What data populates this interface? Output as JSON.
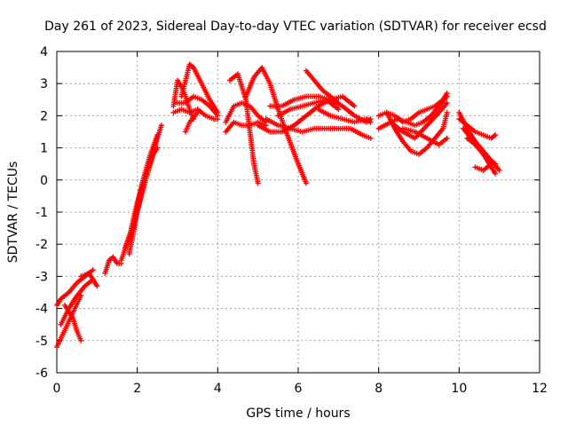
{
  "chart_data": {
    "type": "scatter",
    "title": "Day 261 of 2023, Sidereal Day-to-day VTEC variation (SDTVAR) for receiver ecsd",
    "xlabel": "GPS time / hours",
    "ylabel": "SDTVAR / TECUs",
    "xlim": [
      0,
      12
    ],
    "ylim": [
      -6,
      4
    ],
    "xticks": [
      "0",
      "2",
      "4",
      "6",
      "8",
      "10",
      "12"
    ],
    "yticks": [
      "-6",
      "-5",
      "-4",
      "-3",
      "-2",
      "-1",
      "0",
      "1",
      "2",
      "3",
      "4"
    ],
    "grid": true,
    "marker": "+",
    "color": "#ff0000",
    "arcs": [
      {
        "x": [
          0.0,
          0.1,
          0.3,
          0.5,
          0.7,
          0.9
        ],
        "y": [
          -3.9,
          -3.7,
          -3.5,
          -3.2,
          -3.0,
          -2.8
        ]
      },
      {
        "x": [
          0.0,
          0.15,
          0.3,
          0.45,
          0.6
        ],
        "y": [
          -5.2,
          -4.8,
          -4.4,
          -4.0,
          -3.6
        ]
      },
      {
        "x": [
          0.1,
          0.3,
          0.5,
          0.7,
          0.9
        ],
        "y": [
          -4.5,
          -4.0,
          -3.6,
          -3.3,
          -3.1
        ]
      },
      {
        "x": [
          0.2,
          0.4,
          0.5,
          0.6
        ],
        "y": [
          -3.9,
          -4.3,
          -4.7,
          -5.0
        ]
      },
      {
        "x": [
          0.6,
          0.8,
          0.9,
          1.0
        ],
        "y": [
          -3.0,
          -2.9,
          -3.1,
          -3.3
        ]
      },
      {
        "x": [
          1.2,
          1.3,
          1.4,
          1.5,
          1.6
        ],
        "y": [
          -2.9,
          -2.5,
          -2.4,
          -2.6,
          -2.6
        ]
      },
      {
        "x": [
          1.6,
          1.8,
          2.0,
          2.2,
          2.4,
          2.6
        ],
        "y": [
          -2.5,
          -1.8,
          -0.7,
          0.1,
          0.9,
          1.7
        ]
      },
      {
        "x": [
          1.7,
          1.9,
          2.1,
          2.3,
          2.5
        ],
        "y": [
          -2.1,
          -1.4,
          -0.5,
          0.4,
          1.3
        ]
      },
      {
        "x": [
          1.8,
          2.0,
          2.2,
          2.4,
          2.5
        ],
        "y": [
          -2.3,
          -1.0,
          0.1,
          0.8,
          1.0
        ]
      },
      {
        "x": [
          1.9,
          2.1,
          2.3,
          2.5
        ],
        "y": [
          -1.5,
          -0.2,
          0.7,
          1.4
        ]
      },
      {
        "x": [
          2.9,
          3.0,
          3.1,
          3.2,
          3.3,
          3.4
        ],
        "y": [
          2.3,
          3.1,
          2.9,
          2.6,
          2.2,
          1.9
        ]
      },
      {
        "x": [
          2.9,
          3.1,
          3.3,
          3.5,
          3.7,
          3.9,
          4.0
        ],
        "y": [
          2.1,
          2.2,
          2.1,
          2.2,
          2.0,
          1.9,
          1.9
        ]
      },
      {
        "x": [
          3.1,
          3.2,
          3.3,
          3.4,
          3.6,
          3.8,
          4.0
        ],
        "y": [
          2.6,
          3.1,
          3.6,
          3.5,
          3.0,
          2.5,
          2.1
        ]
      },
      {
        "x": [
          3.0,
          3.2,
          3.4,
          3.6,
          3.8,
          4.0
        ],
        "y": [
          2.4,
          2.4,
          2.6,
          2.5,
          2.3,
          2.0
        ]
      },
      {
        "x": [
          3.2,
          3.3,
          3.5
        ],
        "y": [
          1.5,
          1.8,
          2.1
        ]
      },
      {
        "x": [
          4.3,
          4.5,
          4.7,
          4.9,
          5.0
        ],
        "y": [
          3.1,
          3.3,
          2.5,
          0.5,
          -0.1
        ]
      },
      {
        "x": [
          4.2,
          4.4,
          4.6,
          4.8,
          5.0,
          5.2
        ],
        "y": [
          1.8,
          2.3,
          2.4,
          2.3,
          2.0,
          1.8
        ]
      },
      {
        "x": [
          4.2,
          4.4,
          4.6,
          4.8,
          5.0,
          5.2
        ],
        "y": [
          1.5,
          1.8,
          1.7,
          1.7,
          1.8,
          1.7
        ]
      },
      {
        "x": [
          4.7,
          4.9,
          5.1,
          5.3,
          5.5,
          5.7,
          6.0,
          6.2
        ],
        "y": [
          2.6,
          3.2,
          3.5,
          3.0,
          2.2,
          1.5,
          0.5,
          -0.1
        ]
      },
      {
        "x": [
          5.2,
          5.5,
          5.8,
          6.1,
          6.4,
          6.7,
          7.0,
          7.3,
          7.6,
          7.8
        ],
        "y": [
          1.9,
          1.7,
          1.6,
          1.5,
          1.6,
          1.6,
          1.6,
          1.6,
          1.4,
          1.3
        ]
      },
      {
        "x": [
          5.3,
          5.6,
          5.9,
          6.2,
          6.5,
          6.8,
          7.1,
          7.4,
          7.7,
          7.8
        ],
        "y": [
          2.3,
          2.3,
          2.5,
          2.6,
          2.6,
          2.5,
          2.3,
          2.0,
          1.8,
          1.9
        ]
      },
      {
        "x": [
          5.0,
          5.3,
          5.6,
          5.9,
          6.2,
          6.5,
          6.8,
          7.1,
          7.4
        ],
        "y": [
          1.7,
          1.5,
          1.5,
          1.7,
          2.0,
          2.3,
          2.5,
          2.6,
          2.3
        ]
      },
      {
        "x": [
          5.5,
          5.8,
          6.1,
          6.4,
          6.7,
          7.0
        ],
        "y": [
          2.0,
          2.2,
          2.3,
          2.4,
          2.5,
          2.2
        ]
      },
      {
        "x": [
          6.2,
          6.4,
          6.6,
          6.8,
          7.0
        ],
        "y": [
          3.4,
          3.1,
          2.8,
          2.6,
          2.4
        ]
      },
      {
        "x": [
          6.5,
          6.8,
          7.1,
          7.4,
          7.7,
          7.8
        ],
        "y": [
          2.2,
          2.0,
          1.9,
          1.8,
          1.9,
          1.8
        ]
      },
      {
        "x": [
          8.0,
          8.2,
          8.4,
          8.6,
          8.8,
          9.0,
          9.2,
          9.4,
          9.6,
          9.7
        ],
        "y": [
          2.0,
          2.1,
          2.0,
          1.8,
          1.9,
          2.1,
          2.2,
          2.3,
          2.5,
          2.7
        ]
      },
      {
        "x": [
          8.0,
          8.3,
          8.6,
          8.9,
          9.2,
          9.5,
          9.7
        ],
        "y": [
          1.6,
          1.8,
          1.5,
          1.3,
          1.7,
          2.1,
          2.4
        ]
      },
      {
        "x": [
          8.2,
          8.4,
          8.6,
          8.8,
          9.0,
          9.2,
          9.4,
          9.6,
          9.7
        ],
        "y": [
          2.1,
          1.6,
          1.2,
          0.9,
          0.8,
          1.0,
          1.3,
          1.6,
          2.1
        ]
      },
      {
        "x": [
          8.3,
          8.5,
          8.7,
          8.9,
          9.1,
          9.3,
          9.5,
          9.7
        ],
        "y": [
          1.8,
          1.9,
          1.8,
          1.7,
          1.8,
          2.0,
          2.3,
          2.6
        ]
      },
      {
        "x": [
          8.6,
          8.9,
          9.2,
          9.5,
          9.7
        ],
        "y": [
          1.6,
          1.5,
          1.3,
          1.1,
          1.3
        ]
      },
      {
        "x": [
          10.0,
          10.2,
          10.4,
          10.6,
          10.8,
          11.0
        ],
        "y": [
          2.1,
          1.6,
          1.2,
          0.9,
          0.6,
          0.3
        ]
      },
      {
        "x": [
          10.0,
          10.2,
          10.4,
          10.6,
          10.8,
          10.9
        ],
        "y": [
          1.9,
          1.7,
          1.5,
          1.4,
          1.3,
          1.4
        ]
      },
      {
        "x": [
          10.1,
          10.3,
          10.5,
          10.7,
          10.9
        ],
        "y": [
          1.6,
          1.3,
          1.0,
          0.7,
          0.5
        ]
      },
      {
        "x": [
          10.4,
          10.6,
          10.8
        ],
        "y": [
          0.4,
          0.3,
          0.5
        ]
      },
      {
        "x": [
          10.2,
          10.4,
          10.6,
          10.8,
          10.9
        ],
        "y": [
          1.3,
          1.1,
          0.8,
          0.4,
          0.2
        ]
      }
    ]
  }
}
